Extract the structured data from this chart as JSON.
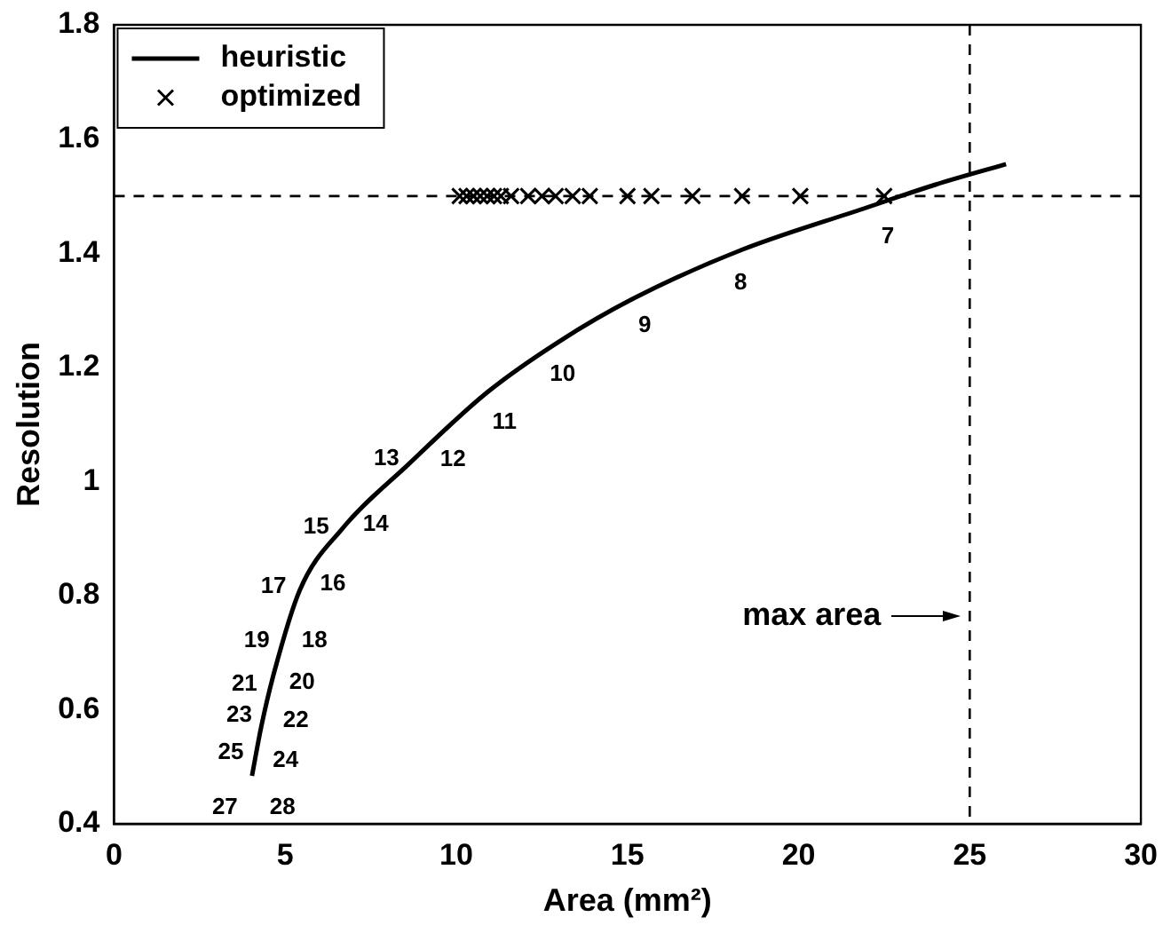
{
  "chart_data": {
    "type": "line",
    "xlabel": "Area (mm²)",
    "ylabel": "Resolution",
    "xlim": [
      0,
      30
    ],
    "xticks": [
      0,
      5,
      10,
      15,
      20,
      25,
      30
    ],
    "ylim": [
      0.4,
      1.8
    ],
    "yticks": [
      0.4,
      0.6,
      0.8,
      1,
      1.2,
      1.4,
      1.6,
      1.8
    ],
    "grid": false,
    "legend": "top left",
    "series": [
      {
        "name": "heuristic",
        "type": "line",
        "color": "#000000",
        "marker": "none",
        "line_style": "solid",
        "x": [
          4.03,
          4.3,
          4.68,
          5.43,
          6.65,
          8.62,
          10.9,
          13,
          15.16,
          18.35,
          21.9,
          24,
          26.06
        ],
        "values": [
          0.484,
          0.57,
          0.666,
          0.81,
          0.916,
          1.031,
          1.156,
          1.245,
          1.32,
          1.406,
          1.478,
          1.52,
          1.556
        ]
      },
      {
        "name": "optimized",
        "type": "scatter",
        "color": "#000000",
        "marker": "cross",
        "x": [
          10.1,
          10.3,
          10.5,
          10.7,
          10.9,
          11.1,
          11.3,
          11.6,
          12.1,
          12.5,
          12.9,
          13.4,
          13.9,
          15.0,
          15.7,
          16.9,
          18.35,
          20.05,
          22.5
        ],
        "values": [
          1.5,
          1.5,
          1.5,
          1.5,
          1.5,
          1.5,
          1.5,
          1.5,
          1.5,
          1.5,
          1.5,
          1.5,
          1.5,
          1.5,
          1.5,
          1.5,
          1.5,
          1.5,
          1.5
        ]
      }
    ],
    "ref_lines": [
      {
        "axis": "y",
        "value": 1.5,
        "line_style": "dashed"
      },
      {
        "axis": "x",
        "value": 25,
        "line_style": "dashed",
        "label": "max area"
      }
    ],
    "annotations": [
      {
        "text": "7",
        "x": 22.5,
        "y": 1.49
      },
      {
        "text": "8",
        "x": 18.2,
        "y": 1.41
      },
      {
        "text": "9",
        "x": 15.4,
        "y": 1.335
      },
      {
        "text": "10",
        "x": 13.0,
        "y": 1.25
      },
      {
        "text": "11",
        "x": 11.3,
        "y": 1.165
      },
      {
        "text": "12",
        "x": 9.8,
        "y": 1.1
      },
      {
        "text": "13",
        "x": 8.75,
        "y": 1.04
      },
      {
        "text": "14",
        "x": 6.75,
        "y": 0.925
      },
      {
        "text": "15",
        "x": 6.7,
        "y": 0.92
      },
      {
        "text": "16",
        "x": 5.5,
        "y": 0.82
      },
      {
        "text": "17",
        "x": 5.45,
        "y": 0.815
      },
      {
        "text": "18",
        "x": 4.96,
        "y": 0.72
      },
      {
        "text": "19",
        "x": 4.96,
        "y": 0.72
      },
      {
        "text": "20",
        "x": 4.6,
        "y": 0.647
      },
      {
        "text": "21",
        "x": 4.6,
        "y": 0.645
      },
      {
        "text": "22",
        "x": 4.42,
        "y": 0.58
      },
      {
        "text": "23",
        "x": 4.45,
        "y": 0.59
      },
      {
        "text": "24",
        "x": 4.12,
        "y": 0.51
      },
      {
        "text": "25",
        "x": 4.2,
        "y": 0.525
      },
      {
        "text": "27",
        "x": 4.03,
        "y": 0.484
      },
      {
        "text": "28",
        "x": 4.03,
        "y": 0.484
      }
    ]
  }
}
